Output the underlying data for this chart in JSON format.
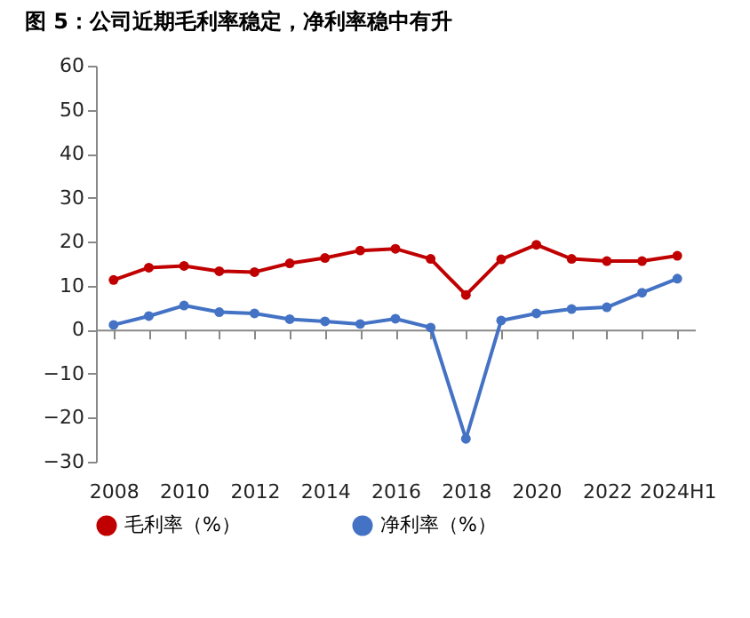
{
  "chart_data": {
    "type": "line",
    "title": "图 5：公司近期毛利率稳定，净利率稳中有升",
    "categories": [
      "2008",
      null,
      "2010",
      null,
      "2012",
      null,
      "2014",
      null,
      "2016",
      null,
      "2018",
      null,
      "2020",
      null,
      "2022",
      null,
      "2024H1"
    ],
    "series": [
      {
        "name": "毛利率（%）",
        "color": "#c00000",
        "values": [
          11.3,
          14.1,
          14.5,
          13.3,
          13.1,
          15.1,
          16.3,
          18.0,
          18.4,
          16.1,
          7.9,
          16.0,
          19.3,
          16.1,
          15.6,
          15.6,
          16.8
        ]
      },
      {
        "name": "净利率（%）",
        "color": "#4472c4",
        "values": [
          1.1,
          3.1,
          5.5,
          4.0,
          3.7,
          2.4,
          1.9,
          1.3,
          2.5,
          0.5,
          -24.8,
          2.1,
          3.7,
          4.7,
          5.1,
          8.4,
          11.6
        ]
      }
    ],
    "ylim": [
      -30,
      60
    ],
    "yticks": [
      -30,
      -20,
      -10,
      0,
      10,
      20,
      30,
      40,
      50,
      60
    ],
    "marker": "circle",
    "legend": "bottom"
  }
}
